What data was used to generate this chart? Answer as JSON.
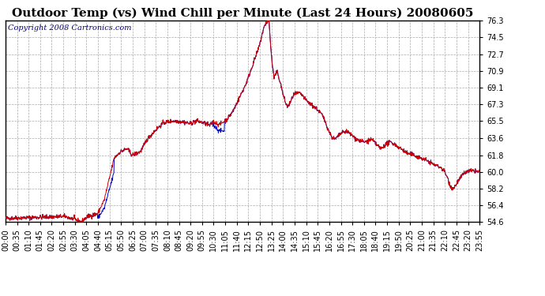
{
  "title": "Outdoor Temp (vs) Wind Chill per Minute (Last 24 Hours) 20080605",
  "copyright_text": "Copyright 2008 Cartronics.com",
  "y_ticks": [
    54.6,
    56.4,
    58.2,
    60.0,
    61.8,
    63.6,
    65.5,
    67.3,
    69.1,
    70.9,
    72.7,
    74.5,
    76.3
  ],
  "ylim": [
    54.6,
    76.3
  ],
  "background_color": "#ffffff",
  "plot_bg_color": "#ffffff",
  "grid_color": "#aaaaaa",
  "line_color_red": "#cc0000",
  "line_color_blue": "#0000cc",
  "title_fontsize": 11,
  "copyright_fontsize": 7,
  "tick_fontsize": 7,
  "x_labels": [
    "00:00",
    "00:35",
    "01:10",
    "01:45",
    "02:20",
    "02:55",
    "03:30",
    "04:05",
    "04:40",
    "05:15",
    "05:50",
    "06:25",
    "07:00",
    "07:35",
    "08:10",
    "08:45",
    "09:20",
    "09:55",
    "10:30",
    "11:05",
    "11:40",
    "12:15",
    "12:50",
    "13:25",
    "14:00",
    "14:35",
    "15:10",
    "15:45",
    "16:20",
    "16:55",
    "17:30",
    "18:05",
    "18:40",
    "19:15",
    "19:50",
    "20:25",
    "21:00",
    "21:35",
    "22:10",
    "22:45",
    "23:20",
    "23:55"
  ],
  "num_points": 1440,
  "seed": 42
}
